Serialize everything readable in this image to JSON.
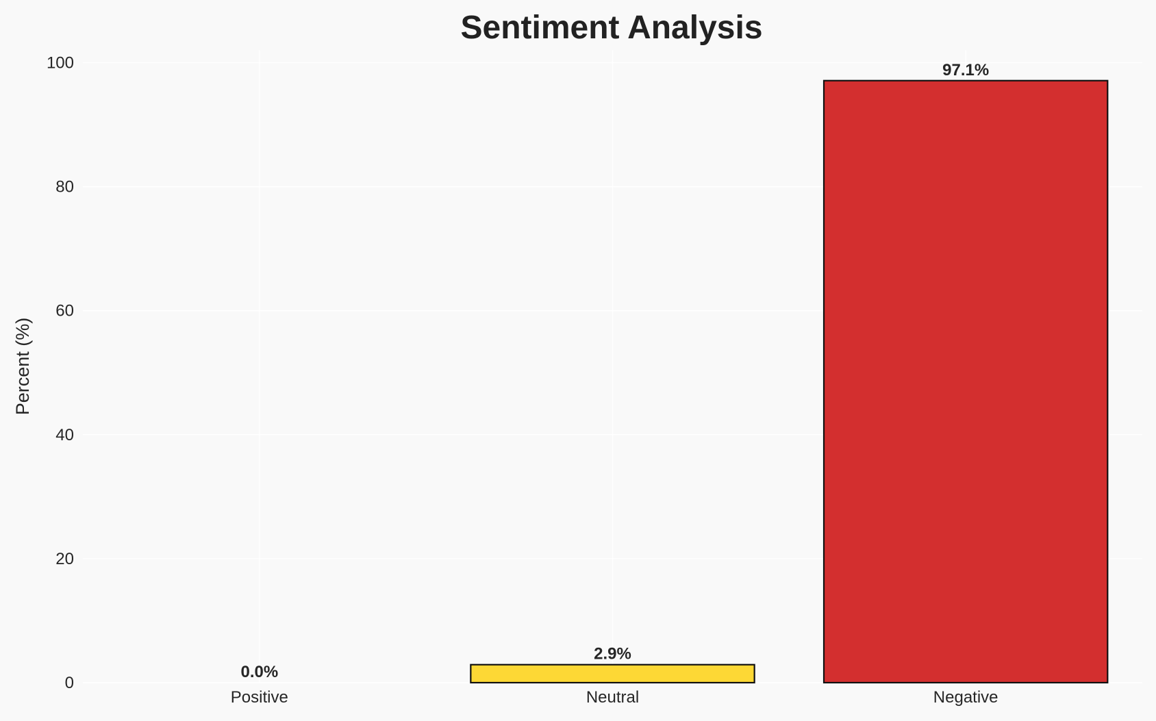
{
  "chart_data": {
    "type": "bar",
    "title": "Sentiment Analysis",
    "xlabel": "",
    "ylabel": "Percent (%)",
    "categories": [
      "Positive",
      "Neutral",
      "Negative"
    ],
    "values": [
      0.0,
      2.9,
      97.1
    ],
    "value_labels": [
      "0.0%",
      "2.9%",
      "97.1%"
    ],
    "colors": [
      "#4caf50",
      "#fdd835",
      "#d32f2f"
    ],
    "edge_color": "#111111",
    "ylim": [
      0,
      102
    ],
    "yticks": [
      0,
      20,
      40,
      60,
      80,
      100
    ],
    "grid": true,
    "background": "#f9f9f9"
  }
}
